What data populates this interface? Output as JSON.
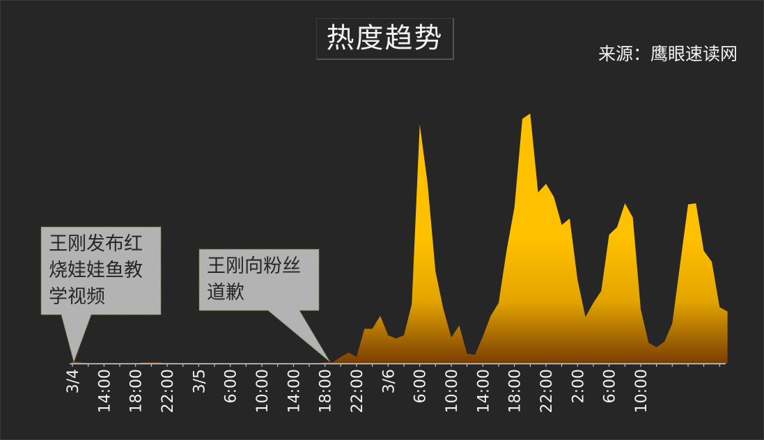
{
  "chart_data": {
    "type": "area",
    "title": "热度趋势",
    "source": "来源：鹰眼速读网",
    "tick_labels": [
      "3/4",
      "14:00",
      "18:00",
      "22:00",
      "3/5",
      "6:00",
      "10:00",
      "14:00",
      "18:00",
      "22:00",
      "3/6",
      "6:00",
      "10:00",
      "14:00",
      "18:00",
      "22:00",
      "2:00",
      "6:00",
      "10:00"
    ],
    "values": [
      2,
      1,
      0,
      0,
      0,
      0,
      0,
      0,
      0,
      1,
      1,
      1,
      0,
      0,
      0,
      0,
      0,
      0,
      0,
      0,
      0,
      0,
      0,
      0,
      0,
      0,
      0,
      0,
      0,
      0,
      0,
      0,
      1,
      1,
      6,
      10,
      6,
      32,
      32,
      44,
      26,
      23,
      26,
      55,
      221,
      166,
      85,
      50,
      24,
      35,
      9,
      8,
      25,
      44,
      56,
      104,
      144,
      226,
      231,
      158,
      166,
      154,
      128,
      134,
      77,
      43,
      56,
      67,
      119,
      126,
      148,
      135,
      50,
      19,
      15,
      20,
      37,
      92,
      147,
      148,
      104,
      94,
      52,
      48
    ],
    "grid": false,
    "legend": "none",
    "colors": {
      "fill_top": "#FFC000",
      "fill_mid": "#E3A400",
      "fill_bottom": "#7A3E04",
      "background": "#262626",
      "callout_bg": "#B3B3B3"
    },
    "annotations": [
      {
        "text": "王刚发布红\n烧娃娃鱼教\n学视频",
        "index": 0
      },
      {
        "text": "王刚向粉丝\n道歉",
        "index": 33
      }
    ]
  }
}
